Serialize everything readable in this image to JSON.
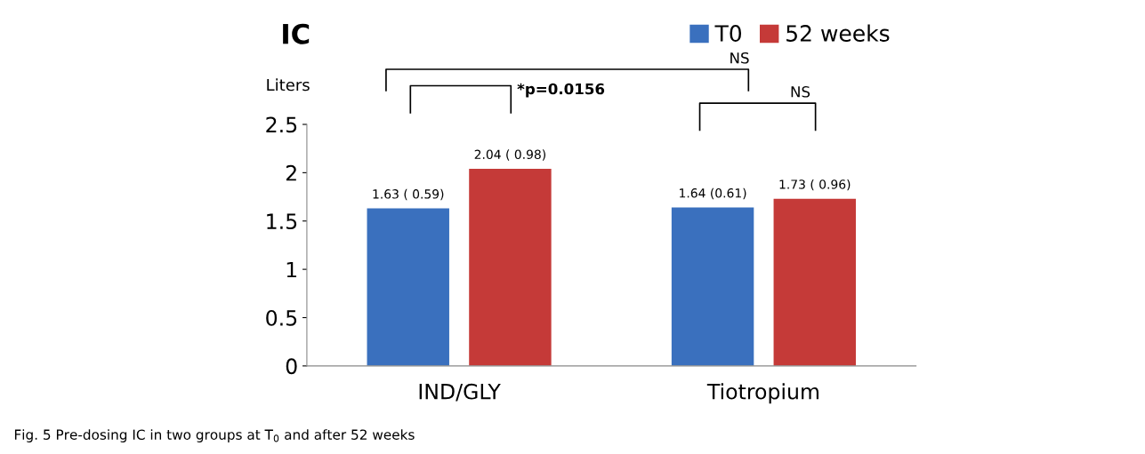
{
  "chart_data": {
    "type": "bar",
    "title": "IC",
    "ylabel": "Liters",
    "categories": [
      "IND/GLY",
      "Tiotropium"
    ],
    "series": [
      {
        "name": "T0",
        "color": "#3a70be",
        "values": [
          1.63,
          1.64
        ],
        "value_labels": [
          "1.63 ( 0.59)",
          "1.64 (0.61)"
        ]
      },
      {
        "name": "52 weeks",
        "color": "#c53a38",
        "values": [
          2.04,
          1.73
        ],
        "value_labels": [
          "2.04 ( 0.98)",
          "1.73 ( 0.96)"
        ]
      }
    ],
    "ylim": [
      0,
      2.5
    ],
    "yticks": [
      0,
      0.5,
      1,
      1.5,
      2,
      2.5
    ],
    "grid": false,
    "legend": "top right",
    "annotations": [
      "*p=0.0156",
      "NS",
      "NS",
      "Fig. 5 Pre-dosing IC in two groups at T$_{0}$ and after 52 weeks"
    ]
  }
}
